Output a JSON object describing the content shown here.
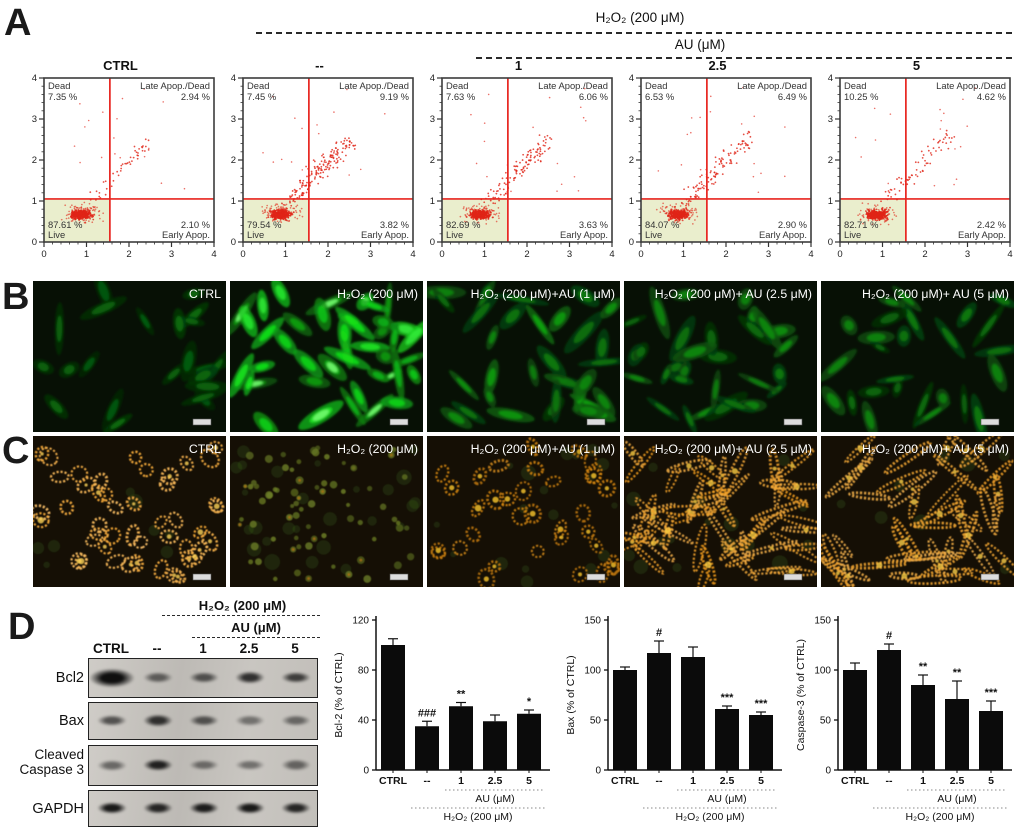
{
  "colors": {
    "flow_dot": "#e02417",
    "flow_line": "#e8251f",
    "live_fill": "#eaeecd",
    "plot_border": "#3c3c3c",
    "bar_fill": "#0b0b0b",
    "green_cell": "#46e846",
    "orange_cell": "#e8982a"
  },
  "panelA": {
    "label": "A",
    "h2o2_header": "H₂O₂ (200 μM)",
    "au_header": "AU (μM)",
    "axis_ticks": [
      "0",
      "1",
      "2",
      "3",
      "4"
    ],
    "quadrant_labels": {
      "dead": "Dead",
      "late": "Late Apop./Dead",
      "live": "Live",
      "early": "Early Apop."
    },
    "plots": [
      {
        "title": "CTRL",
        "dead_pct": "7.35 %",
        "late_pct": "2.94 %",
        "live_pct": "87.61 %",
        "early_pct": "2.10 %",
        "tail": 45
      },
      {
        "title": "--",
        "dead_pct": "7.45 %",
        "late_pct": "9.19 %",
        "live_pct": "79.54 %",
        "early_pct": "3.82 %",
        "tail": 170
      },
      {
        "title": "1",
        "dead_pct": "7.63 %",
        "late_pct": "6.06 %",
        "live_pct": "82.69 %",
        "early_pct": "3.63 %",
        "tail": 120
      },
      {
        "title": "2.5",
        "dead_pct": "6.53 %",
        "late_pct": "6.49 %",
        "live_pct": "84.07 %",
        "early_pct": "2.90 %",
        "tail": 115
      },
      {
        "title": "5",
        "dead_pct": "10.25 %",
        "late_pct": "4.62 %",
        "live_pct": "82.71 %",
        "early_pct": "2.42 %",
        "tail": 70
      }
    ]
  },
  "panelB": {
    "label": "B",
    "captions": [
      "CTRL",
      "H₂O₂ (200 μM)",
      "H₂O₂ (200 μM)+AU (1 μM)",
      "H₂O₂ (200 μM)+ AU (2.5 μM)",
      "H₂O₂ (200 μM)+ AU (5 μM)"
    ]
  },
  "panelC": {
    "label": "C",
    "captions": [
      "CTRL",
      "H₂O₂ (200 μM)",
      "H₂O₂ (200 μM)+AU (1 μM)",
      "H₂O₂ (200 μM)+ AU (2.5 μM)",
      "H₂O₂ (200 μM)+ AU (5 μM)"
    ]
  },
  "panelD": {
    "label": "D",
    "blot": {
      "h2o2_header": "H₂O₂ (200 μM)",
      "au_header": "AU (μM)",
      "lanes": [
        "CTRL",
        "--",
        "1",
        "2.5",
        "5"
      ],
      "rows": [
        {
          "name": "Bcl2",
          "bands": [
            0.97,
            0.55,
            0.62,
            0.8,
            0.72
          ]
        },
        {
          "name": "Bax",
          "bands": [
            0.62,
            0.8,
            0.62,
            0.45,
            0.5
          ]
        },
        {
          "name": "Cleaved Caspase 3",
          "bands": [
            0.5,
            0.88,
            0.48,
            0.45,
            0.52
          ]
        },
        {
          "name": "GAPDH",
          "bands": [
            0.92,
            0.85,
            0.9,
            0.92,
            0.85
          ]
        }
      ]
    }
  },
  "chart_data": [
    {
      "type": "bar",
      "ylabel": "Bcl-2 (% of CTRL)",
      "categories": [
        "CTRL",
        "--",
        "1",
        "2.5",
        "5"
      ],
      "values": [
        100,
        35,
        51,
        39,
        45
      ],
      "errors": [
        5,
        4,
        3,
        5,
        3
      ],
      "sig": [
        "",
        "###",
        "**",
        "",
        "*"
      ],
      "ylim": [
        0,
        120
      ],
      "yticks": [
        0,
        40,
        80,
        120
      ],
      "au_label": "AU (μM)",
      "h2o2_label": "H₂O₂ (200 μM)"
    },
    {
      "type": "bar",
      "ylabel": "Bax (% of CTRL)",
      "categories": [
        "CTRL",
        "--",
        "1",
        "2.5",
        "5"
      ],
      "values": [
        100,
        117,
        113,
        61,
        55
      ],
      "errors": [
        3,
        12,
        10,
        3,
        3
      ],
      "sig": [
        "",
        "#",
        "",
        "***",
        "***"
      ],
      "ylim": [
        0,
        150
      ],
      "yticks": [
        0,
        50,
        100,
        150
      ],
      "au_label": "AU (μM)",
      "h2o2_label": "H₂O₂ (200 μM)"
    },
    {
      "type": "bar",
      "ylabel": "Caspase-3 (% of CTRL)",
      "categories": [
        "CTRL",
        "--",
        "1",
        "2.5",
        "5"
      ],
      "values": [
        100,
        120,
        85,
        71,
        59
      ],
      "errors": [
        7,
        6,
        10,
        18,
        10
      ],
      "sig": [
        "",
        "#",
        "**",
        "**",
        "***"
      ],
      "ylim": [
        0,
        150
      ],
      "yticks": [
        0,
        50,
        100,
        150
      ],
      "au_label": "AU (μM)",
      "h2o2_label": "H₂O₂ (200 μM)"
    }
  ]
}
